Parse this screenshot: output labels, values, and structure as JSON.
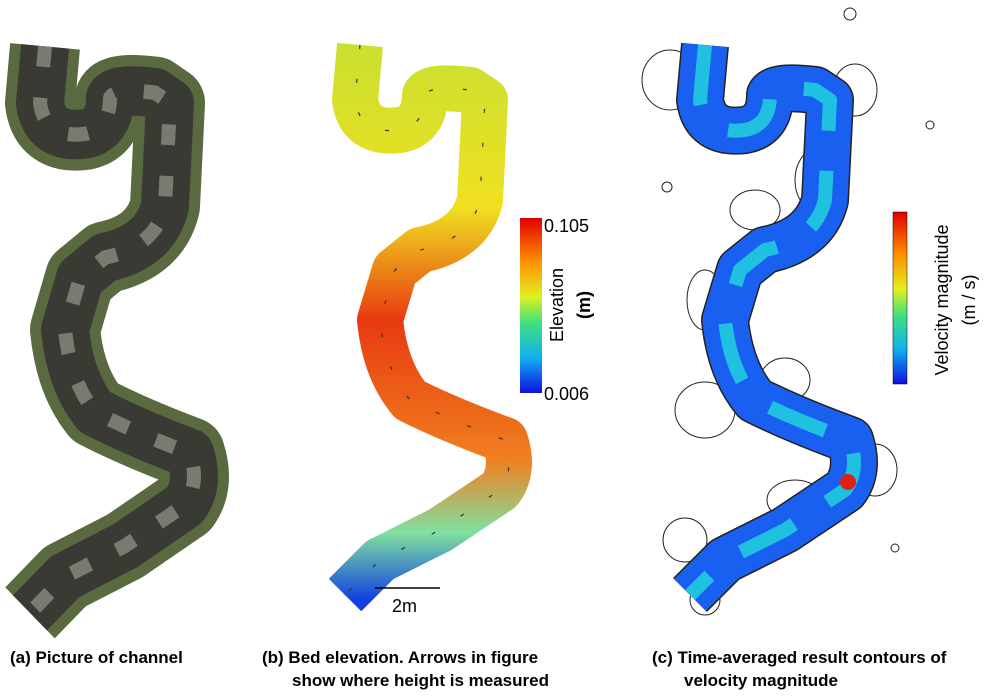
{
  "panels": [
    {
      "caption": [
        "(a) Picture of channel"
      ]
    },
    {
      "caption": [
        "(b) Bed elevation.  Arrows in figure",
        "show where height is measured"
      ],
      "colorbar": {
        "label": "Elevation",
        "unit": "(m)",
        "max": "0.105",
        "min": "0.006"
      },
      "scale_bar": "2m"
    },
    {
      "caption": [
        "(c) Time-averaged result contours of",
        "velocity magnitude"
      ],
      "colorbar": {
        "label": "Velocity magnitude",
        "unit": "(m / s)"
      }
    }
  ]
}
